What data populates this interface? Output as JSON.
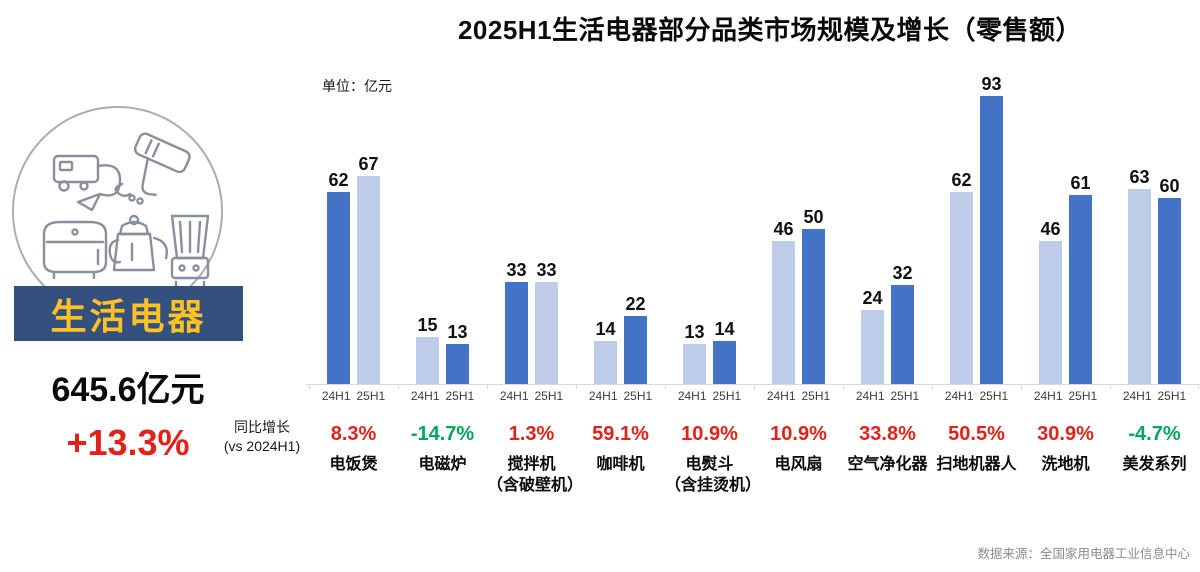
{
  "title": "2025H1生活电器部分品类市场规模及增长（零售额）",
  "unit_label": "单位：亿元",
  "left_panel": {
    "badge": "生活电器",
    "total": "645.6亿元",
    "growth": "+13.3%",
    "illustration": "appliance-line-icons (vacuum, hair-dryer, rice-cooker, kettle, blender)"
  },
  "growth_header": {
    "line1": "同比增长",
    "line2": "(vs 2024H1)"
  },
  "source": "数据来源：全国家用电器工业信息中心",
  "chart_data": {
    "type": "bar",
    "title": "2025H1生活电器部分品类市场规模及增长（零售额）",
    "ylabel": "亿元",
    "ylim": [
      0,
      100
    ],
    "value_axis_hidden": true,
    "grid": false,
    "legend": "none (series labeled 24H1/25H1 under each pair)",
    "series_labels": [
      "24H1",
      "25H1"
    ],
    "categories": [
      "电饭煲",
      "电磁炉",
      "搅拌机\n（含破壁机）",
      "咖啡机",
      "电熨斗\n（含挂烫机）",
      "电风扇",
      "空气净化器",
      "扫地机器人",
      "洗地机",
      "美发系列"
    ],
    "series": [
      {
        "name": "24H1",
        "values": [
          62,
          15,
          33,
          14,
          13,
          46,
          24,
          62,
          46,
          63
        ]
      },
      {
        "name": "25H1",
        "values": [
          67,
          13,
          33,
          22,
          14,
          50,
          32,
          93,
          61,
          60
        ]
      }
    ],
    "growth_labels": [
      "8.3%",
      "-14.7%",
      "1.3%",
      "59.1%",
      "10.9%",
      "10.9%",
      "33.8%",
      "50.5%",
      "30.9%",
      "-4.7%"
    ],
    "growth_sign": [
      "pos",
      "neg",
      "pos",
      "pos",
      "pos",
      "pos",
      "pos",
      "pos",
      "pos",
      "neg"
    ],
    "color_swapped_categories": [
      true,
      false,
      true,
      false,
      false,
      false,
      false,
      false,
      false,
      false
    ]
  },
  "colors": {
    "bar_24h1_light": "#bdcde9",
    "bar_25h1_dark": "#4472c4",
    "banner_bg": "#33507e",
    "banner_text": "#ffc222",
    "positive_red": "#e32119",
    "negative_green": "#00a65a",
    "axis_line": "#d9d9d9",
    "source_text": "#8c8c8c"
  }
}
